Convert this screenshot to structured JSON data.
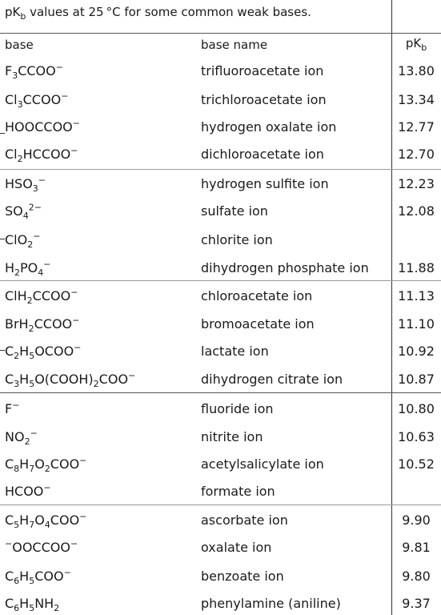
{
  "caption": {
    "pk_main": "pK",
    "pk_sub": "b",
    "text": " values at 25 °C for some common weak bases."
  },
  "header": {
    "base": "base",
    "name": "base name",
    "pk_main": "pK",
    "pk_sub": "b"
  },
  "rows": [
    {
      "name": "trifluoroacetate ion",
      "pkb": "13.80"
    },
    {
      "name": "trichloroacetate ion",
      "pkb": "13.34"
    },
    {
      "name": "hydrogen oxalate ion",
      "pkb": "12.77"
    },
    {
      "name": "dichloroacetate ion",
      "pkb": "12.70"
    },
    {
      "name": "hydrogen sulfite ion",
      "pkb": "12.23"
    },
    {
      "name": "sulfate ion",
      "pkb": "12.08"
    },
    {
      "name": "chlorite ion",
      "pkb": ""
    },
    {
      "name": "dihydrogen phosphate ion",
      "pkb": "11.88"
    },
    {
      "name": "chloroacetate ion",
      "pkb": "11.13"
    },
    {
      "name": "bromoacetate ion",
      "pkb": "11.10"
    },
    {
      "name": "lactate ion",
      "pkb": "10.92"
    },
    {
      "name": "dihydrogen citrate ion",
      "pkb": "10.87"
    },
    {
      "name": "fluoride ion",
      "pkb": "10.80"
    },
    {
      "name": "nitrite ion",
      "pkb": "10.63"
    },
    {
      "name": "acetylsalicylate ion",
      "pkb": "10.52"
    },
    {
      "name": "formate ion",
      "pkb": ""
    },
    {
      "name": "ascorbate ion",
      "pkb": "9.90"
    },
    {
      "name": "oxalate ion",
      "pkb": "9.81"
    },
    {
      "name": "benzoate ion",
      "pkb": "9.80"
    },
    {
      "name": "phenylamine (aniline)",
      "pkb": "9.37"
    }
  ],
  "formulas": [
    [
      [
        "t",
        "F"
      ],
      [
        "sub",
        "3"
      ],
      [
        "t",
        "CCOO"
      ],
      [
        "sup",
        "−"
      ]
    ],
    [
      [
        "t",
        "Cl"
      ],
      [
        "sub",
        "3"
      ],
      [
        "t",
        "CCOO"
      ],
      [
        "sup",
        "−"
      ]
    ],
    [
      [
        "t",
        "HOOCCOO"
      ],
      [
        "sup",
        "−"
      ]
    ],
    [
      [
        "t",
        "Cl"
      ],
      [
        "sub",
        "2"
      ],
      [
        "t",
        "HCCOO"
      ],
      [
        "sup",
        "−"
      ]
    ],
    [
      [
        "t",
        "HSO"
      ],
      [
        "sub",
        "3"
      ],
      [
        "sup",
        "−"
      ]
    ],
    [
      [
        "t",
        "SO"
      ],
      [
        "sub",
        "4"
      ],
      [
        "sup",
        "2−"
      ]
    ],
    [
      [
        "t",
        "ClO"
      ],
      [
        "sub",
        "2"
      ],
      [
        "sup",
        "−"
      ]
    ],
    [
      [
        "t",
        "H"
      ],
      [
        "sub",
        "2"
      ],
      [
        "t",
        "PO"
      ],
      [
        "sub",
        "4"
      ],
      [
        "sup",
        "−"
      ]
    ],
    [
      [
        "t",
        "ClH"
      ],
      [
        "sub",
        "2"
      ],
      [
        "t",
        "CCOO"
      ],
      [
        "sup",
        "−"
      ]
    ],
    [
      [
        "t",
        "BrH"
      ],
      [
        "sub",
        "2"
      ],
      [
        "t",
        "CCOO"
      ],
      [
        "sup",
        "−"
      ]
    ],
    [
      [
        "t",
        "C"
      ],
      [
        "sub",
        "2"
      ],
      [
        "t",
        "H"
      ],
      [
        "sub",
        "5"
      ],
      [
        "t",
        "OCOO"
      ],
      [
        "sup",
        "−"
      ]
    ],
    [
      [
        "t",
        "C"
      ],
      [
        "sub",
        "3"
      ],
      [
        "t",
        "H"
      ],
      [
        "sub",
        "5"
      ],
      [
        "t",
        "O(COOH)"
      ],
      [
        "sub",
        "2"
      ],
      [
        "t",
        "COO"
      ],
      [
        "sup",
        "−"
      ]
    ],
    [
      [
        "t",
        "F"
      ],
      [
        "sup",
        "−"
      ]
    ],
    [
      [
        "t",
        "NO"
      ],
      [
        "sub",
        "2"
      ],
      [
        "sup",
        "−"
      ]
    ],
    [
      [
        "t",
        "C"
      ],
      [
        "sub",
        "8"
      ],
      [
        "t",
        "H"
      ],
      [
        "sub",
        "7"
      ],
      [
        "t",
        "O"
      ],
      [
        "sub",
        "2"
      ],
      [
        "t",
        "COO"
      ],
      [
        "sup",
        "−"
      ]
    ],
    [
      [
        "t",
        "HCOO"
      ],
      [
        "sup",
        "−"
      ]
    ],
    [
      [
        "t",
        "C"
      ],
      [
        "sub",
        "5"
      ],
      [
        "t",
        "H"
      ],
      [
        "sub",
        "7"
      ],
      [
        "t",
        "O"
      ],
      [
        "sub",
        "4"
      ],
      [
        "t",
        "COO"
      ],
      [
        "sup",
        "−"
      ]
    ],
    [
      [
        "sup",
        "−"
      ],
      [
        "t",
        "OOCCOO"
      ],
      [
        "sup",
        "−"
      ]
    ],
    [
      [
        "t",
        "C"
      ],
      [
        "sub",
        "6"
      ],
      [
        "t",
        "H"
      ],
      [
        "sub",
        "5"
      ],
      [
        "t",
        "COO"
      ],
      [
        "sup",
        "−"
      ]
    ],
    [
      [
        "t",
        "C"
      ],
      [
        "sub",
        "6"
      ],
      [
        "t",
        "H"
      ],
      [
        "sub",
        "5"
      ],
      [
        "t",
        "NH"
      ],
      [
        "sub",
        "2"
      ]
    ]
  ]
}
